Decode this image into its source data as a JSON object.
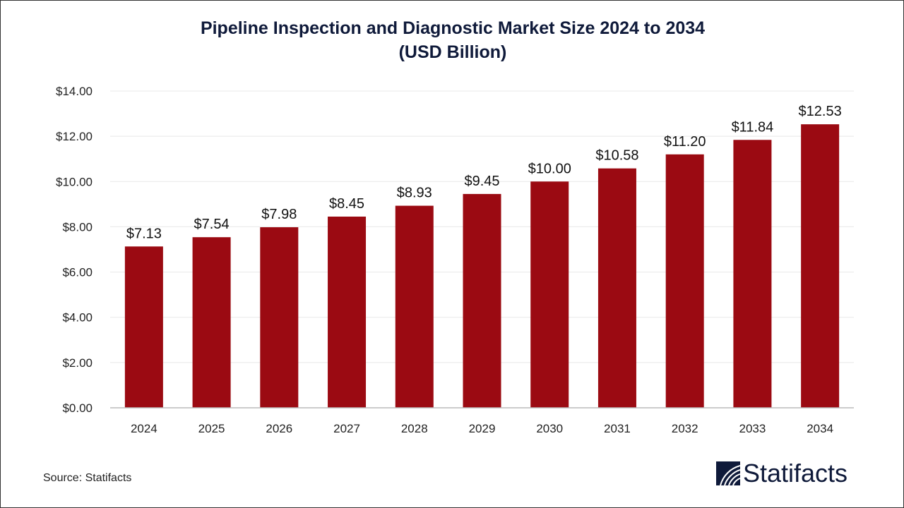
{
  "chart_data": {
    "type": "bar",
    "title": "Pipeline Inspection and Diagnostic Market Size 2024 to 2034",
    "subtitle": "(USD Billion)",
    "categories": [
      "2024",
      "2025",
      "2026",
      "2027",
      "2028",
      "2029",
      "2030",
      "2031",
      "2032",
      "2033",
      "2034"
    ],
    "values": [
      7.13,
      7.54,
      7.98,
      8.45,
      8.93,
      9.45,
      10.0,
      10.58,
      11.2,
      11.84,
      12.53
    ],
    "data_labels": [
      "$7.13",
      "$7.54",
      "$7.98",
      "$8.45",
      "$8.93",
      "$9.45",
      "$10.00",
      "$10.58",
      "$11.20",
      "$11.84",
      "$12.53"
    ],
    "y_ticks": [
      "$0.00",
      "$2.00",
      "$4.00",
      "$6.00",
      "$8.00",
      "$10.00",
      "$12.00",
      "$14.00"
    ],
    "ylim": [
      0,
      14
    ],
    "xlabel": "",
    "ylabel": "",
    "grid": true,
    "bar_color": "#9b0a12"
  },
  "source": "Source: Statifacts",
  "logo": {
    "text": "Statifacts",
    "color": "#0f1a3a"
  }
}
